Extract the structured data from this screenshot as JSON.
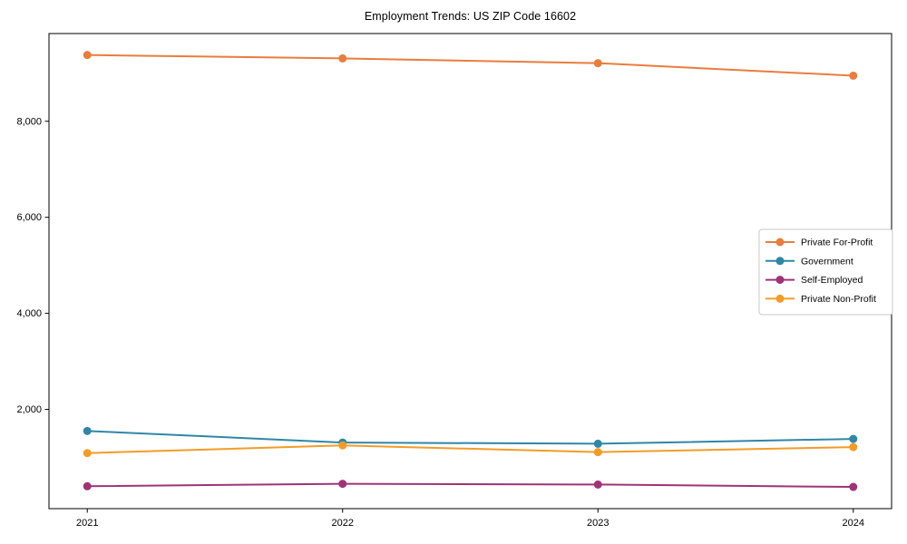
{
  "figure": {
    "background": "#ffffff",
    "spine_color": "#000000",
    "text_color": "#000000",
    "legend_border_color": "#c8c8c8"
  },
  "chart_data": {
    "type": "line",
    "title": "Employment Trends: US ZIP Code 16602",
    "xlabel": "",
    "ylabel": "",
    "x": [
      2021,
      2022,
      2023,
      2024
    ],
    "xtick_labels": [
      "2021",
      "2022",
      "2023",
      "2024"
    ],
    "yticks": [
      2000,
      4000,
      6000,
      8000
    ],
    "ytick_labels": [
      "2,000",
      "4,000",
      "6,000",
      "8,000"
    ],
    "xlim": [
      2020.85,
      2024.15
    ],
    "ylim": [
      -67,
      9827
    ],
    "grid": false,
    "legend_position": "center-right",
    "marker": "circle",
    "series": [
      {
        "name": "Private For-Profit",
        "color": "#e97d3d",
        "values": [
          9380,
          9310,
          9210,
          8950
        ]
      },
      {
        "name": "Government",
        "color": "#2f87a5",
        "values": [
          1550,
          1310,
          1285,
          1385
        ]
      },
      {
        "name": "Self-Employed",
        "color": "#a03377",
        "values": [
          400,
          450,
          435,
          385
        ]
      },
      {
        "name": "Private Non-Profit",
        "color": "#f29c27",
        "values": [
          1090,
          1250,
          1110,
          1215
        ]
      }
    ]
  }
}
